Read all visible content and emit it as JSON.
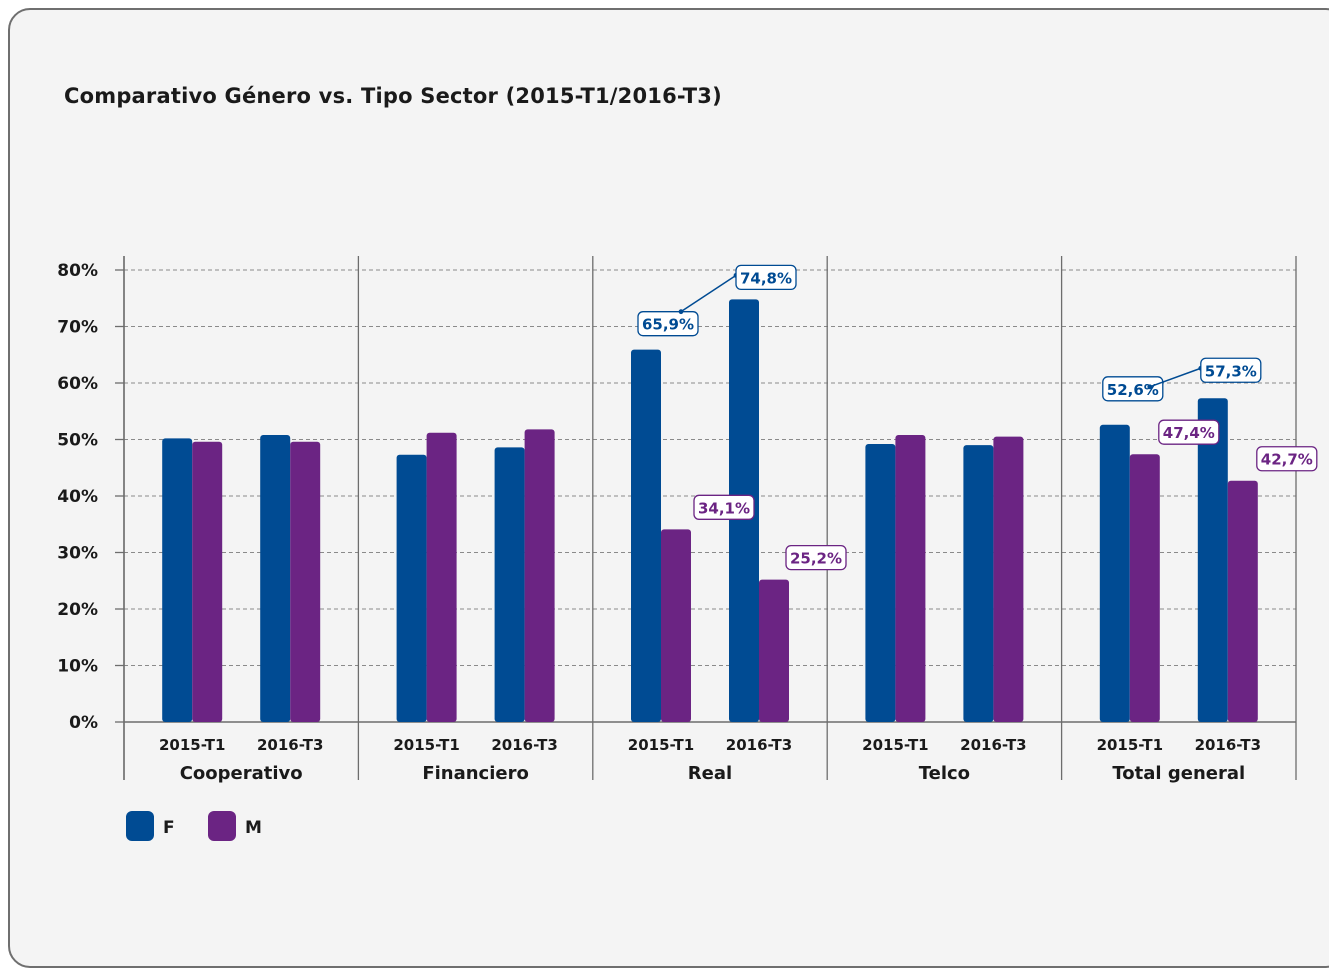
{
  "chart_data": {
    "type": "bar",
    "title": "Comparativo Género vs. Tipo Sector (2015-T1/2016-T3)",
    "xlabel": "",
    "ylabel": "",
    "ylim": [
      0,
      80
    ],
    "y_ticks": [
      "0%",
      "10%",
      "20%",
      "30%",
      "40%",
      "50%",
      "60%",
      "70%",
      "80%"
    ],
    "grid": true,
    "legend_position": "bottom-left",
    "groups": [
      {
        "name": "Cooperativo",
        "categories": [
          "2015-T1",
          "2016-T3"
        ],
        "F": [
          50.2,
          50.8
        ],
        "M": [
          49.6,
          49.6
        ]
      },
      {
        "name": "Financiero",
        "categories": [
          "2015-T1",
          "2016-T3"
        ],
        "F": [
          47.3,
          48.6
        ],
        "M": [
          51.2,
          51.8
        ]
      },
      {
        "name": "Real",
        "categories": [
          "2015-T1",
          "2016-T3"
        ],
        "F": [
          65.9,
          74.8
        ],
        "M": [
          34.1,
          25.2
        ]
      },
      {
        "name": "Telco",
        "categories": [
          "2015-T1",
          "2016-T3"
        ],
        "F": [
          49.2,
          49.0
        ],
        "M": [
          50.8,
          50.5
        ]
      },
      {
        "name": "Total general",
        "categories": [
          "2015-T1",
          "2016-T3"
        ],
        "F": [
          52.6,
          57.3
        ],
        "M": [
          47.4,
          42.7
        ]
      }
    ],
    "series": [
      {
        "name": "F",
        "color": "#004b93"
      },
      {
        "name": "M",
        "color": "#6b2483"
      }
    ],
    "data_labels": [
      {
        "group": 2,
        "cat": 0,
        "series": "F",
        "text": "65,9%"
      },
      {
        "group": 2,
        "cat": 1,
        "series": "F",
        "text": "74,8%"
      },
      {
        "group": 2,
        "cat": 0,
        "series": "M",
        "text": "34,1%"
      },
      {
        "group": 2,
        "cat": 1,
        "series": "M",
        "text": "25,2%"
      },
      {
        "group": 4,
        "cat": 0,
        "series": "F",
        "text": "52,6%"
      },
      {
        "group": 4,
        "cat": 1,
        "series": "F",
        "text": "57,3%"
      },
      {
        "group": 4,
        "cat": 0,
        "series": "M",
        "text": "47,4%"
      },
      {
        "group": 4,
        "cat": 1,
        "series": "M",
        "text": "42,7%"
      }
    ]
  }
}
